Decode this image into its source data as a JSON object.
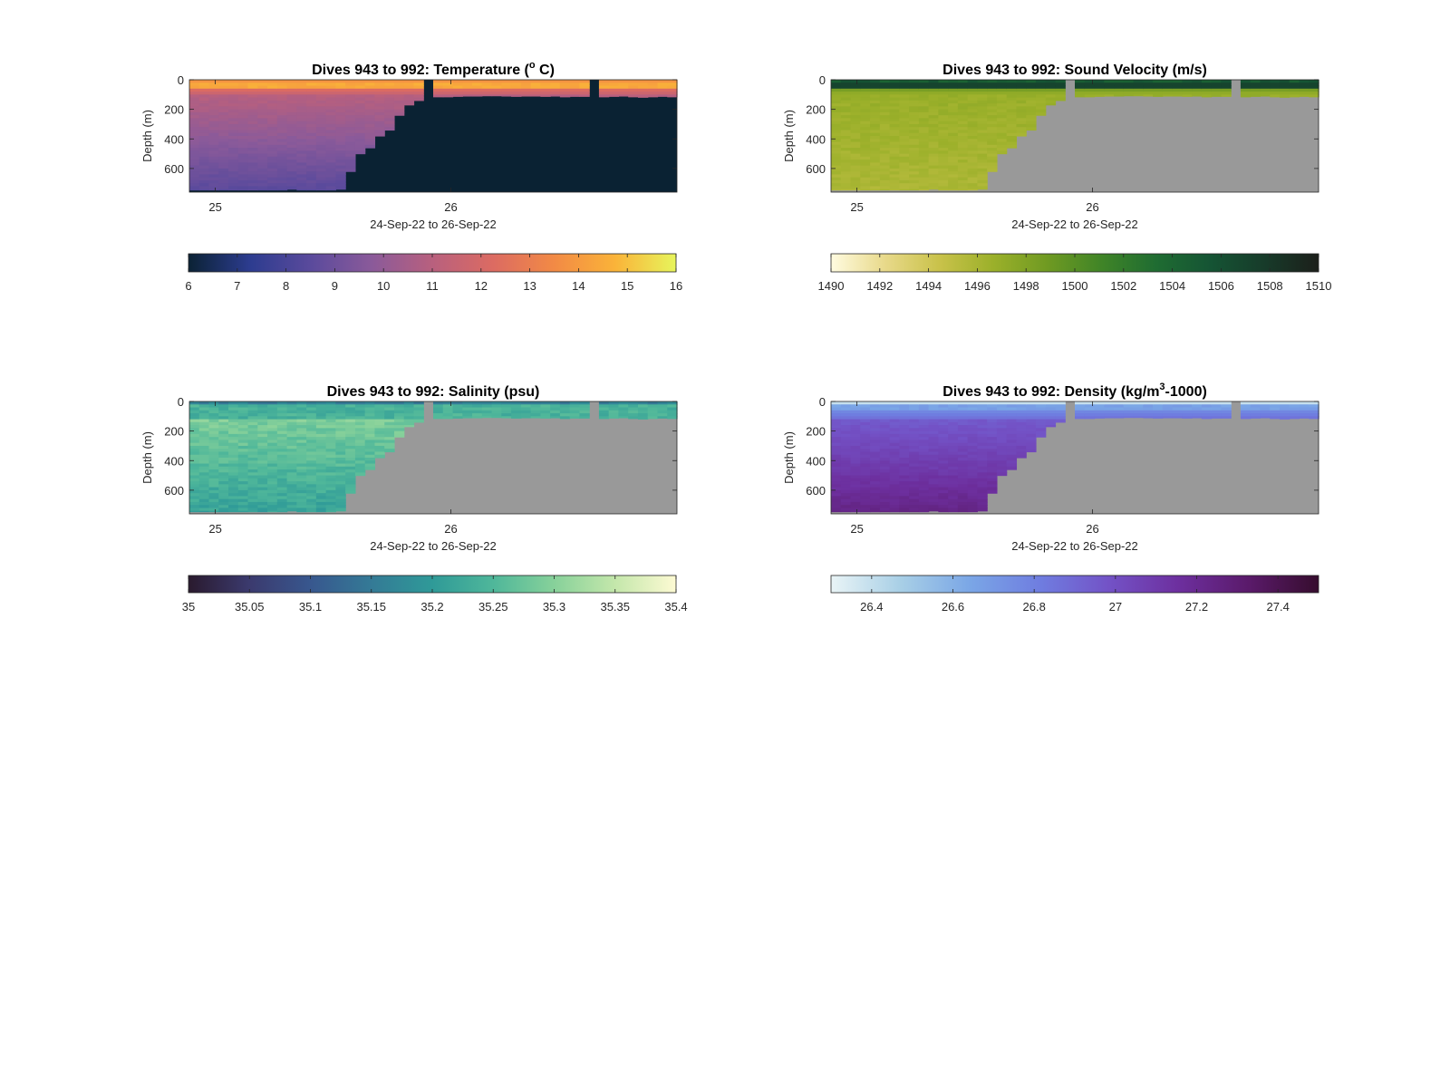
{
  "chart_data": [
    {
      "type": "heatmap",
      "title": "Dives 943 to 992: Temperature (° C)",
      "xlabel": "24-Sep-22 to 26-Sep-22",
      "ylabel": "Depth (m)",
      "xticks": [
        "25",
        "26"
      ],
      "yticks": [
        0,
        200,
        400,
        600
      ],
      "ylim": [
        760,
        0
      ],
      "colorbar": {
        "min": 6,
        "max": 16,
        "ticks": [
          "6",
          "7",
          "8",
          "9",
          "10",
          "11",
          "12",
          "13",
          "14",
          "15",
          "16"
        ],
        "colors": [
          "#0b2234",
          "#2c3c8f",
          "#5a4a9c",
          "#8a5a9a",
          "#b8607e",
          "#dc6b62",
          "#f28a45",
          "#fab339",
          "#e7f55c"
        ]
      },
      "no_data_color": "#0a2233",
      "notes": {
        "mixed_layer": "warm surface layer (~14-15 °C) in upper ~100 m across all dives",
        "deep": "9-11 °C below the mixed layer in early deep dives"
      }
    },
    {
      "type": "heatmap",
      "title": "Dives 943 to 992: Sound Velocity (m/s)",
      "xlabel": "24-Sep-22 to 26-Sep-22",
      "ylabel": "Depth (m)",
      "xticks": [
        "25",
        "26"
      ],
      "yticks": [
        0,
        200,
        400,
        600
      ],
      "ylim": [
        760,
        0
      ],
      "colorbar": {
        "min": 1490,
        "max": 1510,
        "ticks": [
          "1490",
          "1492",
          "1494",
          "1496",
          "1498",
          "1500",
          "1502",
          "1504",
          "1506",
          "1508",
          "1510"
        ],
        "colors": [
          "#fffbe0",
          "#e8d98a",
          "#c9c24a",
          "#9bb02a",
          "#6f9a22",
          "#3f8427",
          "#1f6c32",
          "#155434",
          "#173b2a",
          "#1c1f1a"
        ]
      },
      "no_data_color": "#999999"
    },
    {
      "type": "heatmap",
      "title": "Dives 943 to 992: Salinity (psu)",
      "xlabel": "24-Sep-22 to 26-Sep-22",
      "ylabel": "Depth (m)",
      "xticks": [
        "25",
        "26"
      ],
      "yticks": [
        0,
        200,
        400,
        600
      ],
      "ylim": [
        760,
        0
      ],
      "colorbar": {
        "min": 35,
        "max": 35.4,
        "ticks": [
          "35",
          "35.05",
          "35.1",
          "35.15",
          "35.2",
          "35.25",
          "35.3",
          "35.35",
          "35.4"
        ],
        "colors": [
          "#2a1a2e",
          "#3b3a6e",
          "#38578e",
          "#347a96",
          "#2f9a98",
          "#4fb79a",
          "#87d19a",
          "#c4e7ab",
          "#fdfad3"
        ]
      },
      "no_data_color": "#999999"
    },
    {
      "type": "heatmap",
      "title": "Dives 943 to 992: Density (kg/m³-1000)",
      "title_parts": [
        "Dives 943 to 992: Density (kg/m",
        "3",
        "-1000)"
      ],
      "xlabel": "24-Sep-22 to 26-Sep-22",
      "ylabel": "Depth (m)",
      "xticks": [
        "25",
        "26"
      ],
      "yticks": [
        0,
        200,
        400,
        600
      ],
      "ylim": [
        760,
        0
      ],
      "colorbar": {
        "min": 26.3,
        "max": 27.5,
        "ticks": [
          "26.4",
          "26.6",
          "26.8",
          "27",
          "27.2",
          "27.4"
        ],
        "colors": [
          "#e9f4f6",
          "#a8cfe6",
          "#7aa6e6",
          "#6f7de0",
          "#7352c6",
          "#6d2f9e",
          "#5a1a6a",
          "#360d2e"
        ]
      },
      "no_data_color": "#999999"
    }
  ],
  "shared": {
    "xlim_days": [
      24.89,
      26.96
    ],
    "xtick_days": [
      25,
      26
    ],
    "dives": 50,
    "dive_max_depth_m": [
      760,
      760,
      760,
      760,
      760,
      760,
      760,
      760,
      760,
      760,
      760,
      760,
      760,
      760,
      760,
      760,
      760,
      760,
      760,
      760,
      760,
      760,
      760,
      760,
      760,
      760,
      760,
      760,
      760,
      760,
      760,
      760,
      760,
      760,
      760,
      760,
      760,
      760,
      760,
      760,
      760,
      760,
      760,
      760,
      760,
      760,
      760,
      760,
      760,
      760
    ],
    "profile_bottom_depth_m": [
      745,
      745,
      745,
      745,
      745,
      745,
      745,
      745,
      745,
      745,
      740,
      745,
      745,
      745,
      745,
      740,
      620,
      500,
      460,
      380,
      340,
      240,
      170,
      140,
      120,
      115,
      115,
      112,
      110,
      110,
      108,
      108,
      110,
      112,
      110,
      110,
      112,
      110,
      115,
      112,
      112,
      110,
      115,
      112,
      110,
      115,
      118,
      115,
      112,
      115
    ],
    "gaps_days": [
      25.9,
      26.61
    ]
  }
}
